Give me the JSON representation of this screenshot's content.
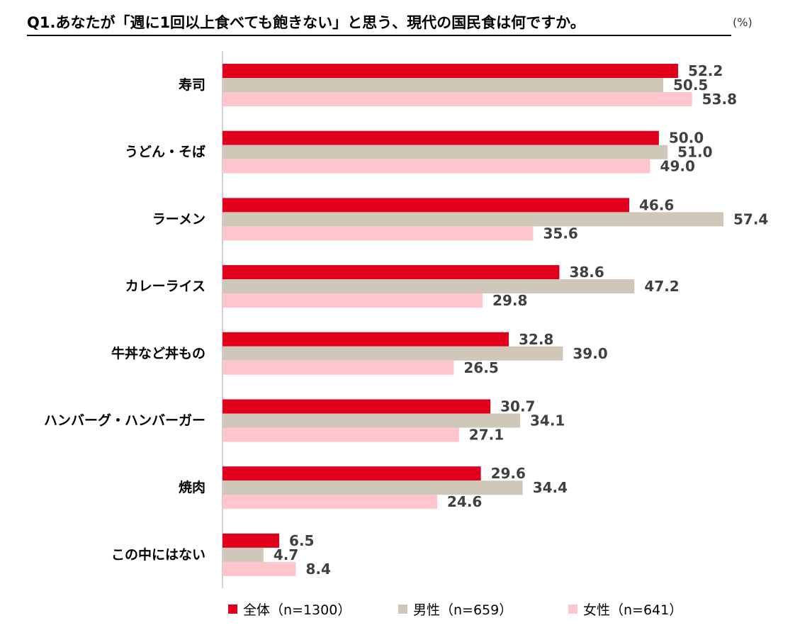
{
  "chart_data": {
    "type": "bar",
    "orientation": "horizontal",
    "title": "Q1.あなたが「週に1回以上食べても飽きない」と思う、現代の国民食は何ですか。",
    "unit": "(%)",
    "categories": [
      "寿司",
      "うどん・そば",
      "ラーメン",
      "カレーライス",
      "牛丼など丼もの",
      "ハンバーグ・ハンバーガー",
      "焼肉",
      "この中にはない"
    ],
    "series": [
      {
        "name": "全体（n=1300）",
        "color": "#e0001b",
        "values": [
          52.2,
          50.0,
          46.6,
          38.6,
          32.8,
          30.7,
          29.6,
          6.5
        ]
      },
      {
        "name": "男性（n=659）",
        "color": "#cfc8b9",
        "values": [
          50.5,
          51.0,
          57.4,
          47.2,
          39.0,
          34.1,
          34.4,
          4.7
        ]
      },
      {
        "name": "女性（n=641）",
        "color": "#ffc5cc",
        "values": [
          53.8,
          49.0,
          35.6,
          29.8,
          26.5,
          27.1,
          24.6,
          8.4
        ]
      }
    ],
    "xlim": [
      0,
      57.4
    ],
    "legend_position": "bottom"
  }
}
